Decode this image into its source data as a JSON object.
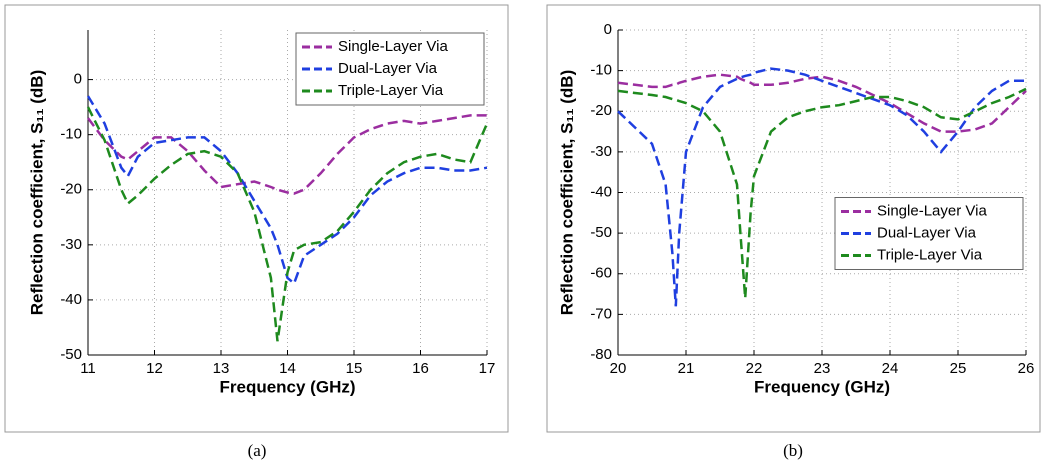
{
  "chart_data": [
    {
      "type": "line",
      "caption": "(a)",
      "xlabel": "Frequency (GHz)",
      "ylabel": "Reflection coefficient, S₁₁ (dB)",
      "x": [
        11,
        11.25,
        11.5,
        11.6,
        11.75,
        12,
        12.25,
        12.5,
        12.75,
        13,
        13.25,
        13.5,
        13.75,
        13.85,
        14,
        14.1,
        14.25,
        14.5,
        14.75,
        15,
        15.25,
        15.5,
        15.75,
        16,
        16.25,
        16.5,
        16.75,
        17
      ],
      "series": [
        {
          "name": "Single-Layer Via",
          "color": "#9b2ea0",
          "values": [
            -7,
            -11,
            -14,
            -14.5,
            -13,
            -10.5,
            -10.5,
            -13,
            -16.5,
            -19.5,
            -19,
            -18.5,
            -19.5,
            -20,
            -20.5,
            -20.7,
            -20,
            -17,
            -13.5,
            -10.5,
            -9,
            -8,
            -7.5,
            -8,
            -7.5,
            -7,
            -6.5,
            -6.5
          ]
        },
        {
          "name": "Dual-Layer Via",
          "color": "#1f3fe0",
          "values": [
            -3,
            -8,
            -16,
            -17.5,
            -14,
            -11.5,
            -11,
            -10.5,
            -10.5,
            -13,
            -17,
            -22,
            -27,
            -30,
            -36,
            -37,
            -32,
            -30,
            -28,
            -25,
            -21,
            -18.5,
            -17,
            -16,
            -16,
            -16.5,
            -16.5,
            -16
          ]
        },
        {
          "name": "Triple-Layer Via",
          "color": "#1e8a1e",
          "values": [
            -5,
            -11,
            -20,
            -22.5,
            -21,
            -18,
            -15.5,
            -13.5,
            -13,
            -14,
            -17,
            -24,
            -36,
            -47.5,
            -35,
            -31,
            -30,
            -29.5,
            -27.5,
            -24,
            -20,
            -17,
            -15,
            -14,
            -13.5,
            -14.5,
            -15,
            -8
          ]
        }
      ],
      "xlim": [
        11,
        17
      ],
      "xticks": [
        11,
        12,
        13,
        14,
        15,
        16,
        17
      ],
      "ylim": [
        -50,
        9
      ],
      "yticks": [
        -50,
        -40,
        -30,
        -20,
        -10,
        0
      ],
      "grid": true,
      "legend": "upper right"
    },
    {
      "type": "line",
      "caption": "(b)",
      "xlabel": "Frequency (GHz)",
      "ylabel": "Reflection coefficient, S₁₁ (dB)",
      "x": [
        20,
        20.25,
        20.5,
        20.7,
        20.8,
        20.85,
        20.9,
        21,
        21.25,
        21.5,
        21.75,
        21.8,
        21.87,
        21.95,
        22,
        22.25,
        22.5,
        22.75,
        23,
        23.25,
        23.5,
        23.75,
        24,
        24.25,
        24.5,
        24.75,
        25,
        25.25,
        25.5,
        25.75,
        26
      ],
      "series": [
        {
          "name": "Single-Layer Via",
          "color": "#9b2ea0",
          "values": [
            -13,
            -13.5,
            -14,
            -14,
            -13.5,
            -13.5,
            -13,
            -12.5,
            -11.5,
            -11,
            -11.5,
            -12,
            -12.5,
            -13,
            -13.5,
            -13.5,
            -13,
            -12,
            -11.5,
            -12.5,
            -14,
            -16,
            -18,
            -20.5,
            -23,
            -25,
            -25,
            -24.5,
            -23,
            -19,
            -15
          ]
        },
        {
          "name": "Dual-Layer Via",
          "color": "#1f3fe0",
          "values": [
            -20,
            -24,
            -28,
            -38,
            -55,
            -68,
            -50,
            -30,
            -19,
            -14,
            -12,
            -11.7,
            -11.3,
            -11,
            -10.5,
            -9.5,
            -10,
            -11,
            -12.5,
            -14,
            -15.5,
            -17,
            -18.5,
            -21,
            -25,
            -30,
            -25,
            -19,
            -15,
            -12.5,
            -12.5
          ]
        },
        {
          "name": "Triple-Layer Via",
          "color": "#1e8a1e",
          "values": [
            -15,
            -15.5,
            -16,
            -16.5,
            -17,
            -17.2,
            -17.5,
            -18,
            -20,
            -25,
            -38,
            -50,
            -66,
            -45,
            -36,
            -25,
            -21.5,
            -20,
            -19,
            -18.5,
            -17.5,
            -16.5,
            -16.5,
            -17.5,
            -19,
            -21.5,
            -22,
            -20,
            -18,
            -16.5,
            -14.5
          ]
        }
      ],
      "xlim": [
        20,
        26
      ],
      "xticks": [
        20,
        21,
        22,
        23,
        24,
        25,
        26
      ],
      "ylim": [
        -80,
        0
      ],
      "yticks": [
        -80,
        -70,
        -60,
        -50,
        -40,
        -30,
        -20,
        -10,
        0
      ],
      "grid": true,
      "legend": "center right"
    }
  ]
}
